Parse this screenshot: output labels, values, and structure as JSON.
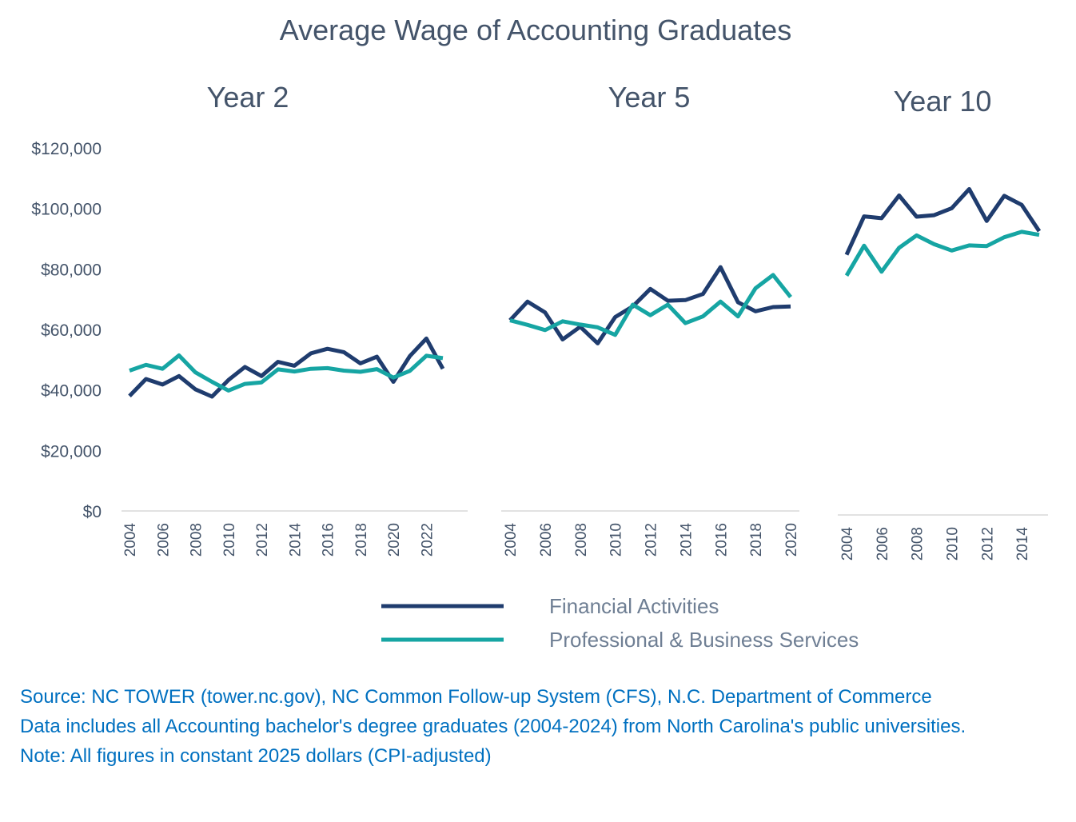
{
  "chart_data": {
    "title": "Average Wage of Accounting Graduates",
    "type": "line",
    "y_ticks": [
      "$0",
      "$20,000",
      "$40,000",
      "$60,000",
      "$80,000",
      "$100,000",
      "$120,000"
    ],
    "ylim": [
      0,
      120000
    ],
    "grid": false,
    "legend_position": "bottom",
    "series_styles": [
      {
        "name": "Financial Activities",
        "color": "#1f3c6e"
      },
      {
        "name": "Professional & Business Services",
        "color": "#16a5a3"
      }
    ],
    "panels": [
      {
        "title": "Year 2",
        "x_tick_labels": [
          "2004",
          "2006",
          "2008",
          "2010",
          "2012",
          "2014",
          "2016",
          "2018",
          "2020",
          "2022"
        ],
        "x": [
          2004,
          2005,
          2006,
          2007,
          2008,
          2009,
          2010,
          2011,
          2012,
          2013,
          2014,
          2015,
          2016,
          2017,
          2018,
          2019,
          2020,
          2021,
          2022,
          2023
        ],
        "xlim": [
          2004,
          2023
        ],
        "series": [
          {
            "name": "Financial Activities",
            "values": [
              38000,
              43600,
              41800,
              44600,
              40200,
              37800,
              43300,
              47600,
              44600,
              49300,
              48000,
              52100,
              53600,
              52500,
              48800,
              51000,
              42700,
              51200,
              57000,
              47000
            ]
          },
          {
            "name": "Professional & Business Services",
            "values": [
              46400,
              48300,
              47000,
              51400,
              45800,
              42700,
              39800,
              42000,
              42500,
              46800,
              46100,
              47000,
              47200,
              46400,
              46000,
              46900,
              44100,
              46300,
              51300,
              50500
            ]
          }
        ]
      },
      {
        "title": "Year 5",
        "x_tick_labels": [
          "2004",
          "2006",
          "2008",
          "2010",
          "2012",
          "2014",
          "2016",
          "2018",
          "2020"
        ],
        "x": [
          2004,
          2005,
          2006,
          2007,
          2008,
          2009,
          2010,
          2011,
          2012,
          2013,
          2014,
          2015,
          2016,
          2017,
          2018,
          2019,
          2020
        ],
        "xlim": [
          2004,
          2020
        ],
        "series": [
          {
            "name": "Financial Activities",
            "values": [
              63000,
              69200,
              65600,
              56700,
              60900,
              55400,
              64100,
              67600,
              73400,
              69500,
              69700,
              71700,
              80600,
              69000,
              66000,
              67400,
              67600
            ]
          },
          {
            "name": "Professional & Business Services",
            "values": [
              63000,
              61500,
              59800,
              62700,
              61600,
              60700,
              58200,
              68200,
              64700,
              68200,
              62100,
              64300,
              69200,
              64300,
              73600,
              78000,
              70700
            ]
          }
        ]
      },
      {
        "title": "Year 10",
        "x_tick_labels": [
          "2004",
          "2006",
          "2008",
          "2010",
          "2012",
          "2014"
        ],
        "x": [
          2004,
          2005,
          2006,
          2007,
          2008,
          2009,
          2010,
          2011,
          2012,
          2013,
          2014,
          2015
        ],
        "xlim": [
          2004,
          2015
        ],
        "series": [
          {
            "name": "Financial Activities",
            "values": [
              86000,
              98700,
              98100,
              105600,
              98600,
              99100,
              101400,
              107700,
              97200,
              105500,
              102500,
              93800
            ]
          },
          {
            "name": "Professional & Business Services",
            "values": [
              79100,
              89000,
              80400,
              88300,
              92400,
              89500,
              87400,
              89100,
              88900,
              91800,
              93600,
              92600
            ]
          }
        ]
      }
    ]
  },
  "notes": {
    "source_line": "Source: NC TOWER (tower.nc.gov), NC Common Follow-up System (CFS), N.C. Department of Commerce",
    "data_line": "Data includes all Accounting bachelor's degree graduates (2004-2024) from North Carolina's public universities.",
    "note_line": "Note: All figures in constant 2025 dollars (CPI-adjusted)"
  }
}
